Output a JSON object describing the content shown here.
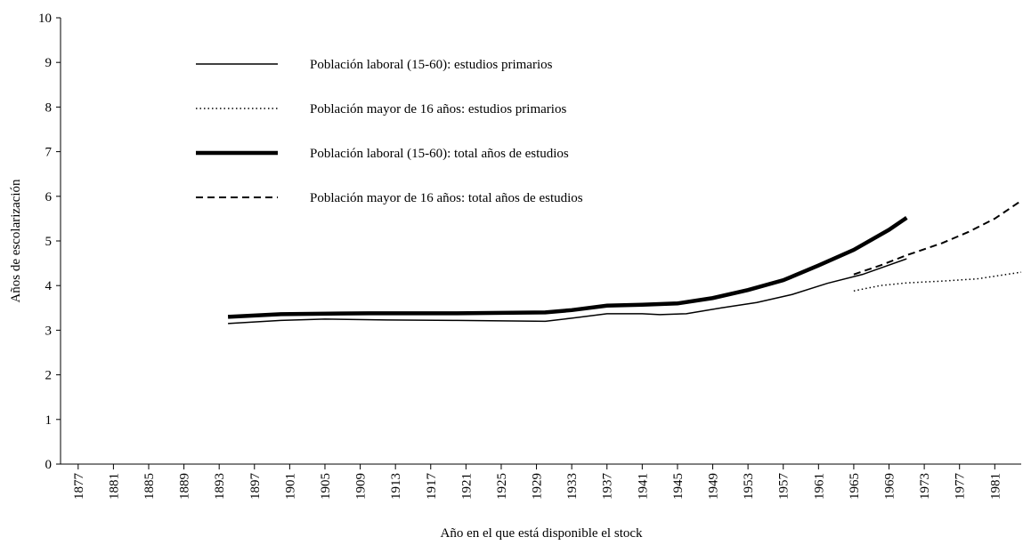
{
  "chart_data": {
    "type": "line",
    "y_label": "Años de escolarización",
    "x_label": "Año en el que está disponible el stock",
    "xlim": [
      1875,
      1984
    ],
    "ylim": [
      0,
      10
    ],
    "yticks": [
      0,
      1,
      2,
      3,
      4,
      5,
      6,
      7,
      8,
      9,
      10
    ],
    "xticks": [
      1877,
      1881,
      1885,
      1889,
      1893,
      1897,
      1901,
      1905,
      1909,
      1913,
      1917,
      1921,
      1925,
      1929,
      1933,
      1937,
      1941,
      1945,
      1949,
      1953,
      1957,
      1961,
      1965,
      1969,
      1973,
      1977,
      1981
    ],
    "legend": "upper-left",
    "series": [
      {
        "name": "Población laboral (15-60): estudios primarios",
        "color": "#000000",
        "style": "solid",
        "width": 1.5,
        "x": [
          1894,
          1900,
          1905,
          1912,
          1920,
          1930,
          1933,
          1937,
          1941,
          1943,
          1946,
          1950,
          1954,
          1958,
          1962,
          1966,
          1971
        ],
        "values": [
          3.15,
          3.22,
          3.25,
          3.23,
          3.22,
          3.2,
          3.27,
          3.37,
          3.37,
          3.35,
          3.37,
          3.5,
          3.62,
          3.8,
          4.05,
          4.25,
          4.6
        ]
      },
      {
        "name": "Población mayor de 16 años: estudios primarios",
        "color": "#000000",
        "style": "dotted",
        "width": 1.5,
        "x": [
          1965,
          1968,
          1971,
          1975,
          1979,
          1984
        ],
        "values": [
          3.88,
          4.0,
          4.06,
          4.1,
          4.15,
          4.3
        ]
      },
      {
        "name": "Población laboral (15-60): total años de estudios",
        "color": "#000000",
        "style": "solid",
        "width": 4.5,
        "x": [
          1894,
          1900,
          1910,
          1920,
          1930,
          1933,
          1937,
          1941,
          1945,
          1949,
          1953,
          1957,
          1961,
          1965,
          1969,
          1971
        ],
        "values": [
          3.3,
          3.36,
          3.38,
          3.38,
          3.4,
          3.45,
          3.55,
          3.57,
          3.6,
          3.72,
          3.9,
          4.12,
          4.45,
          4.8,
          5.25,
          5.52
        ]
      },
      {
        "name": "Población mayor de 16 años: total años de estudios",
        "color": "#000000",
        "style": "dashed",
        "width": 2,
        "x": [
          1965,
          1968,
          1971,
          1975,
          1978,
          1981,
          1984
        ],
        "values": [
          4.25,
          4.45,
          4.68,
          4.95,
          5.2,
          5.5,
          5.9
        ]
      }
    ]
  }
}
